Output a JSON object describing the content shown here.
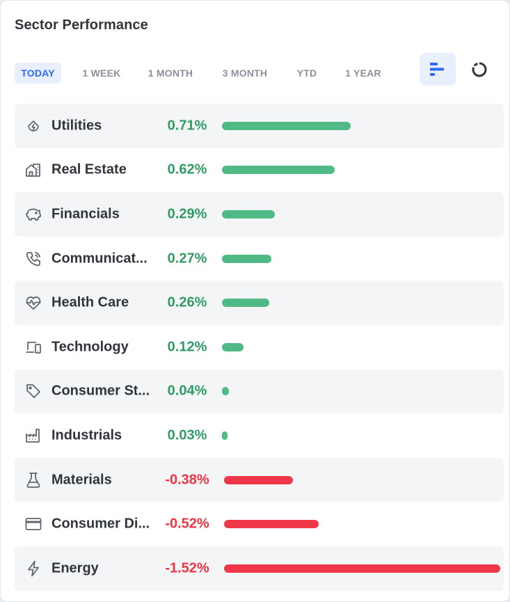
{
  "widget": {
    "title": "Sector Performance"
  },
  "tabs": [
    {
      "label": "TODAY",
      "active": true
    },
    {
      "label": "1 WEEK",
      "active": false
    },
    {
      "label": "1 MONTH",
      "active": false
    },
    {
      "label": "3 MONTH",
      "active": false
    },
    {
      "label": "YTD",
      "active": false
    },
    {
      "label": "1 YEAR",
      "active": false
    }
  ],
  "view_toggle": [
    {
      "name": "bar-view-icon",
      "active": true
    },
    {
      "name": "donut-view-icon",
      "active": false
    }
  ],
  "colors": {
    "positive": "#4fba86",
    "negative": "#f0374a",
    "positive_text": "#2f9c63",
    "negative_text": "#ee3342",
    "accent": "#2f6bf0",
    "icon": "#5f6670"
  },
  "sectors": [
    {
      "name": "Utilities",
      "display": "Utilities",
      "value": 0.71,
      "label": "0.71%",
      "icon": "utilities-icon"
    },
    {
      "name": "Real Estate",
      "display": "Real Estate",
      "value": 0.62,
      "label": "0.62%",
      "icon": "real-estate-icon"
    },
    {
      "name": "Financials",
      "display": "Financials",
      "value": 0.29,
      "label": "0.29%",
      "icon": "piggy-bank-icon"
    },
    {
      "name": "Communication Services",
      "display": "Communicat...",
      "value": 0.27,
      "label": "0.27%",
      "icon": "phone-icon"
    },
    {
      "name": "Health Care",
      "display": "Health Care",
      "value": 0.26,
      "label": "0.26%",
      "icon": "heartbeat-icon"
    },
    {
      "name": "Technology",
      "display": "Technology",
      "value": 0.12,
      "label": "0.12%",
      "icon": "devices-icon"
    },
    {
      "name": "Consumer Staples",
      "display": "Consumer St...",
      "value": 0.04,
      "label": "0.04%",
      "icon": "tag-icon"
    },
    {
      "name": "Industrials",
      "display": "Industrials",
      "value": 0.03,
      "label": "0.03%",
      "icon": "factory-icon"
    },
    {
      "name": "Materials",
      "display": "Materials",
      "value": -0.38,
      "label": "-0.38%",
      "icon": "flask-icon"
    },
    {
      "name": "Consumer Discretionary",
      "display": "Consumer Di...",
      "value": -0.52,
      "label": "-0.52%",
      "icon": "credit-card-icon"
    },
    {
      "name": "Energy",
      "display": "Energy",
      "value": -1.52,
      "label": "-1.52%",
      "icon": "lightning-icon"
    }
  ]
}
